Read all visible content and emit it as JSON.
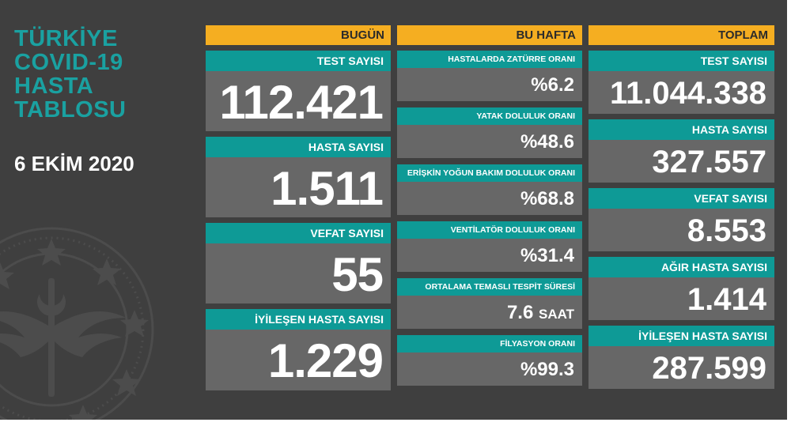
{
  "title_lines": [
    "TÜRKİYE",
    "COVID-19",
    "HASTA",
    "TABLOSU"
  ],
  "date": "6 EKİM 2020",
  "columns": {
    "today": "BUGÜN",
    "week": "BU HAFTA",
    "total": "TOPLAM"
  },
  "today": [
    {
      "label": "TEST SAYISI",
      "value": "112.421"
    },
    {
      "label": "HASTA SAYISI",
      "value": "1.511"
    },
    {
      "label": "VEFAT SAYISI",
      "value": "55"
    },
    {
      "label": "İYİLEŞEN HASTA SAYISI",
      "value": "1.229"
    }
  ],
  "week": [
    {
      "label": "HASTALARDA ZATÜRRE ORANI",
      "value": "%6.2",
      "unit": ""
    },
    {
      "label": "YATAK DOLULUK ORANI",
      "value": "%48.6",
      "unit": ""
    },
    {
      "label": "ERİŞKİN YOĞUN BAKIM DOLULUK ORANI",
      "value": "%68.8",
      "unit": ""
    },
    {
      "label": "VENTİLATÖR DOLULUK ORANI",
      "value": "%31.4",
      "unit": ""
    },
    {
      "label": "ORTALAMA TEMASLI TESPİT SÜRESİ",
      "value": "7.6",
      "unit": "SAAT"
    },
    {
      "label": "FİLYASYON ORANI",
      "value": "%99.3",
      "unit": ""
    }
  ],
  "total": [
    {
      "label": "TEST SAYISI",
      "value": "11.044.338"
    },
    {
      "label": "HASTA SAYISI",
      "value": "327.557"
    },
    {
      "label": "VEFAT SAYISI",
      "value": "8.553"
    },
    {
      "label": "AĞIR HASTA SAYISI",
      "value": "1.414"
    },
    {
      "label": "İYİLEŞEN HASTA SAYISI",
      "value": "287.599"
    }
  ],
  "colors": {
    "background": "#3f3f3f",
    "teal": "#0e9a96",
    "title_teal": "#1aa1a1",
    "gold": "#f5ae21",
    "card": "#676767"
  }
}
